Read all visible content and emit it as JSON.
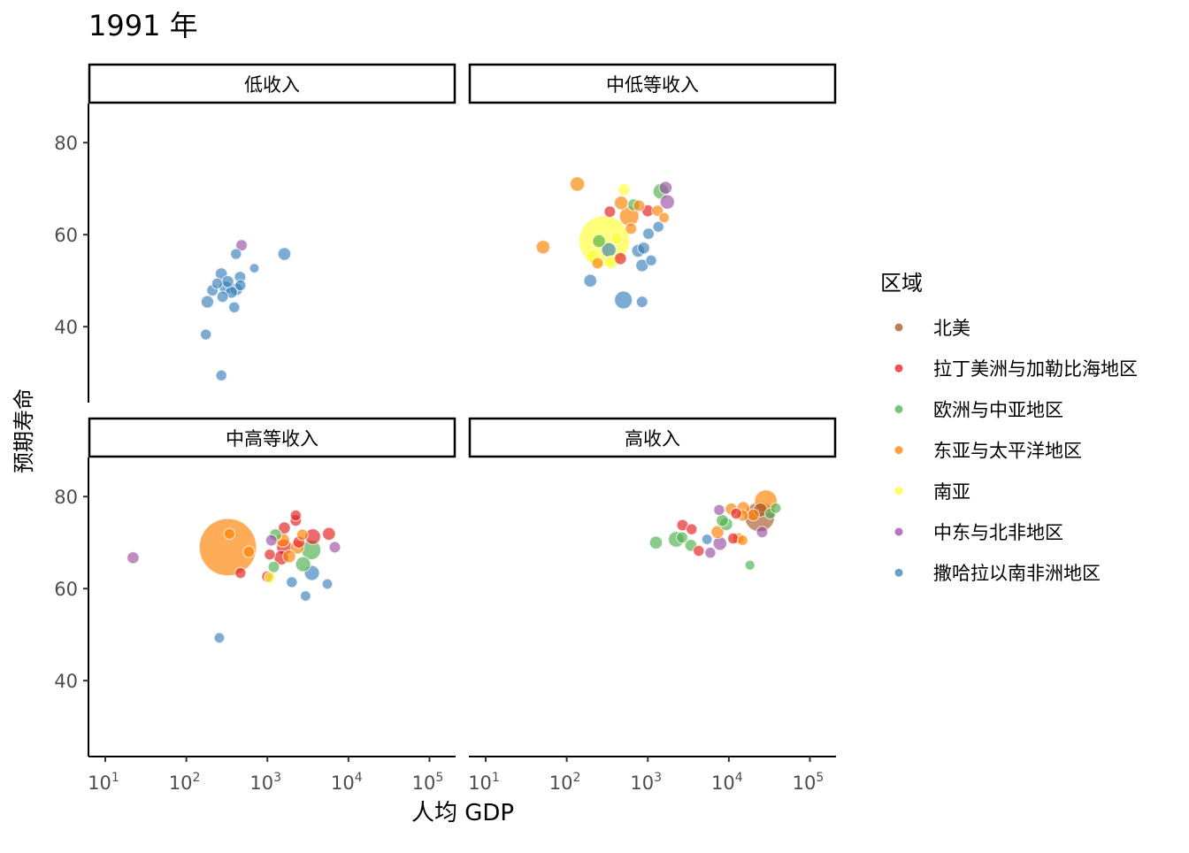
{
  "chart_data": {
    "type": "scatter",
    "title": "1991 年",
    "xlabel": "人均 GDP",
    "ylabel": "预期寿命",
    "x_scale": "log10",
    "xlim": [
      6.2,
      210000
    ],
    "ylim": [
      23.5,
      88.5
    ],
    "x_ticks": [
      {
        "base": "10",
        "exp": "1",
        "value": 10
      },
      {
        "base": "10",
        "exp": "2",
        "value": 100
      },
      {
        "base": "10",
        "exp": "3",
        "value": 1000
      },
      {
        "base": "10",
        "exp": "4",
        "value": 10000
      },
      {
        "base": "10",
        "exp": "5",
        "value": 100000
      }
    ],
    "y_ticks": [
      40,
      60,
      80
    ],
    "grid": false,
    "legend": {
      "title": "区域",
      "placement": "right",
      "entries": [
        {
          "label": "北美",
          "color": "#A65628"
        },
        {
          "label": "拉丁美洲与加勒比海地区",
          "color": "#E41A1C"
        },
        {
          "label": "欧洲与中亚地区",
          "color": "#4DAF4A"
        },
        {
          "label": "东亚与太平洋地区",
          "color": "#FF7F00"
        },
        {
          "label": "南亚",
          "color": "#FFFF33"
        },
        {
          "label": "中东与北非地区",
          "color": "#984EA3"
        },
        {
          "label": "撒哈拉以南非洲地区",
          "color": "#377EB8"
        }
      ]
    },
    "point_fields": [
      "gdp_per_capita",
      "life_expectancy",
      "population_millions",
      "region_index"
    ],
    "facets": [
      {
        "label": "低收入",
        "points": [
          [
            174,
            38.3,
            10,
            6
          ],
          [
            270,
            29.4,
            10,
            6
          ],
          [
            480,
            57.7,
            12,
            5
          ],
          [
            410,
            55.8,
            10,
            6
          ],
          [
            1620,
            55.8,
            20,
            6
          ],
          [
            690,
            52.7,
            5,
            6
          ],
          [
            270,
            51.5,
            15,
            6
          ],
          [
            460,
            50.8,
            12,
            6
          ],
          [
            182,
            45.4,
            18,
            6
          ],
          [
            390,
            44.2,
            10,
            6
          ],
          [
            210,
            47.9,
            12,
            6
          ],
          [
            305,
            48.5,
            20,
            6
          ],
          [
            360,
            47.5,
            15,
            6
          ],
          [
            415,
            48.1,
            18,
            6
          ],
          [
            465,
            49,
            10,
            6
          ],
          [
            280,
            46.5,
            12,
            6
          ],
          [
            240,
            49.4,
            10,
            6
          ],
          [
            325,
            49.8,
            15,
            6
          ]
        ]
      },
      {
        "label": "中低等收入",
        "points": [
          [
            135,
            71,
            30,
            3
          ],
          [
            51,
            57.3,
            25,
            3
          ],
          [
            195,
            50,
            20,
            6
          ],
          [
            500,
            45.8,
            60,
            6
          ],
          [
            850,
            45.4,
            12,
            6
          ],
          [
            290,
            58.6,
            870,
            4
          ],
          [
            510,
            69.8,
            15,
            4
          ],
          [
            340,
            65,
            12,
            1
          ],
          [
            590,
            64,
            80,
            3
          ],
          [
            670,
            66.5,
            15,
            2
          ],
          [
            780,
            66.3,
            12,
            3
          ],
          [
            1450,
            69.4,
            40,
            2
          ],
          [
            1660,
            70.2,
            20,
            5
          ],
          [
            1740,
            67.1,
            30,
            5
          ],
          [
            1320,
            65.2,
            12,
            3
          ],
          [
            1000,
            65.2,
            15,
            1
          ],
          [
            1590,
            63.7,
            8,
            3
          ],
          [
            1350,
            61.7,
            10,
            6
          ],
          [
            1020,
            60.2,
            12,
            6
          ],
          [
            890,
            57.1,
            15,
            6
          ],
          [
            760,
            56.5,
            20,
            6
          ],
          [
            1100,
            54.4,
            10,
            6
          ],
          [
            850,
            53.3,
            18,
            6
          ],
          [
            250,
            58.6,
            20,
            2
          ],
          [
            330,
            56.7,
            30,
            6
          ],
          [
            415,
            59.2,
            15,
            4
          ],
          [
            210,
            55.2,
            25,
            4
          ],
          [
            240,
            53.8,
            12,
            3
          ],
          [
            460,
            54.8,
            15,
            1
          ],
          [
            355,
            54,
            20,
            4
          ],
          [
            620,
            61.3,
            12,
            3
          ],
          [
            470,
            66.9,
            25,
            3
          ]
        ]
      },
      {
        "label": "中高等收入",
        "points": [
          [
            22,
            66.7,
            15,
            5
          ],
          [
            325,
            69,
            1150,
            3
          ],
          [
            340,
            71.9,
            10,
            3
          ],
          [
            590,
            68,
            12,
            3
          ],
          [
            465,
            63.4,
            10,
            1
          ],
          [
            255,
            49.3,
            8,
            6
          ],
          [
            1000,
            62.6,
            12,
            1
          ],
          [
            1070,
            62.4,
            10,
            4
          ],
          [
            2000,
            61.4,
            10,
            6
          ],
          [
            2960,
            58.4,
            8,
            6
          ],
          [
            5500,
            61,
            8,
            6
          ],
          [
            3540,
            63.4,
            35,
            6
          ],
          [
            3460,
            68.4,
            80,
            2
          ],
          [
            2760,
            65.3,
            35,
            2
          ],
          [
            5750,
            71.9,
            20,
            1
          ],
          [
            3630,
            71.3,
            40,
            1
          ],
          [
            2240,
            75.9,
            10,
            1
          ],
          [
            2240,
            74.8,
            12,
            1
          ],
          [
            1620,
            73.2,
            15,
            1
          ],
          [
            6800,
            69,
            12,
            5
          ],
          [
            1120,
            70.5,
            12,
            5
          ],
          [
            1260,
            71.7,
            15,
            2
          ],
          [
            1550,
            70.5,
            25,
            3
          ],
          [
            1620,
            69,
            40,
            1
          ],
          [
            1070,
            67.4,
            10,
            1
          ],
          [
            1480,
            66.7,
            30,
            1
          ],
          [
            1860,
            67,
            20,
            3
          ],
          [
            1200,
            64.7,
            12,
            2
          ],
          [
            2450,
            70.1,
            15,
            1
          ],
          [
            2700,
            71.7,
            12,
            3
          ],
          [
            2340,
            69,
            25,
            3
          ]
        ]
      },
      {
        "label": "高收入",
        "points": [
          [
            1260,
            70,
            20,
            2
          ],
          [
            2240,
            70.7,
            40,
            2
          ],
          [
            2650,
            71.1,
            12,
            2
          ],
          [
            3400,
            69.4,
            15,
            2
          ],
          [
            2680,
            73.8,
            12,
            1
          ],
          [
            3470,
            72.9,
            10,
            1
          ],
          [
            4250,
            68.2,
            10,
            1
          ],
          [
            5380,
            70.7,
            8,
            6
          ],
          [
            5900,
            67.8,
            10,
            5
          ],
          [
            7600,
            77.1,
            10,
            5
          ],
          [
            7760,
            69.8,
            25,
            5
          ],
          [
            7250,
            72.3,
            20,
            3
          ],
          [
            8300,
            74.8,
            15,
            2
          ],
          [
            9300,
            74,
            20,
            2
          ],
          [
            11300,
            70.9,
            10,
            1
          ],
          [
            13100,
            70.9,
            12,
            3
          ],
          [
            14800,
            70.5,
            8,
            3
          ],
          [
            10700,
            77.3,
            15,
            3
          ],
          [
            15100,
            77.5,
            20,
            3
          ],
          [
            12300,
            76.3,
            10,
            1
          ],
          [
            14800,
            75.9,
            12,
            3
          ],
          [
            18200,
            65.1,
            6,
            2
          ],
          [
            28600,
            79,
            120,
            3
          ],
          [
            24000,
            75.6,
            250,
            0
          ],
          [
            24500,
            77.1,
            27,
            0
          ],
          [
            38000,
            77.5,
            8,
            2
          ],
          [
            32400,
            76.3,
            10,
            2
          ],
          [
            25700,
            72.3,
            12,
            5
          ],
          [
            20000,
            76,
            15,
            3
          ]
        ]
      }
    ]
  }
}
